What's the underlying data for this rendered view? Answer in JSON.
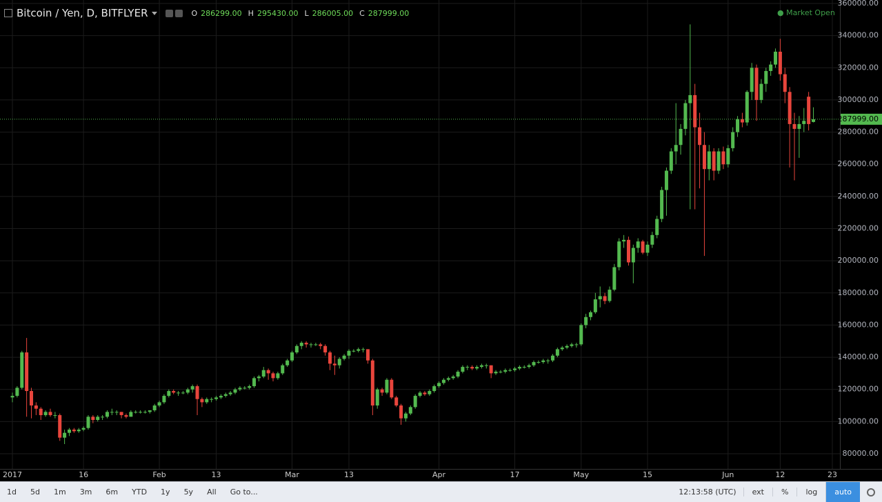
{
  "header": {
    "symbol": "Bitcoin / Yen, D, BITFLYER",
    "ohlc": [
      {
        "key": "O",
        "value": "286299.00"
      },
      {
        "key": "H",
        "value": "295430.00"
      },
      {
        "key": "L",
        "value": "286005.00"
      },
      {
        "key": "C",
        "value": "287999.00"
      }
    ],
    "status": "Market Open"
  },
  "toolbar": {
    "ranges": [
      "1d",
      "5d",
      "1m",
      "3m",
      "6m",
      "YTD",
      "1y",
      "5y",
      "All",
      "Go to..."
    ],
    "time": "12:13:58 (UTC)",
    "options": [
      "ext",
      "%",
      "log",
      "auto"
    ]
  },
  "chart_data": {
    "type": "candlestick",
    "up_color": "#53b94f",
    "down_color": "#e8453c",
    "grid": true,
    "grid_color": "#1c1c1c",
    "x": [
      "2017-01-01",
      "2017-01-02",
      "2017-01-03",
      "2017-01-04",
      "2017-01-05",
      "2017-01-06",
      "2017-01-07",
      "2017-01-08",
      "2017-01-09",
      "2017-01-10",
      "2017-01-11",
      "2017-01-12",
      "2017-01-13",
      "2017-01-14",
      "2017-01-15",
      "2017-01-16",
      "2017-01-17",
      "2017-01-18",
      "2017-01-19",
      "2017-01-20",
      "2017-01-21",
      "2017-01-22",
      "2017-01-23",
      "2017-01-24",
      "2017-01-25",
      "2017-01-26",
      "2017-01-27",
      "2017-01-28",
      "2017-01-29",
      "2017-01-30",
      "2017-01-31",
      "2017-02-01",
      "2017-02-02",
      "2017-02-03",
      "2017-02-04",
      "2017-02-05",
      "2017-02-06",
      "2017-02-07",
      "2017-02-08",
      "2017-02-09",
      "2017-02-10",
      "2017-02-11",
      "2017-02-12",
      "2017-02-13",
      "2017-02-14",
      "2017-02-15",
      "2017-02-16",
      "2017-02-17",
      "2017-02-18",
      "2017-02-19",
      "2017-02-20",
      "2017-02-21",
      "2017-02-22",
      "2017-02-23",
      "2017-02-24",
      "2017-02-25",
      "2017-02-26",
      "2017-02-27",
      "2017-02-28",
      "2017-03-01",
      "2017-03-02",
      "2017-03-03",
      "2017-03-04",
      "2017-03-05",
      "2017-03-06",
      "2017-03-07",
      "2017-03-08",
      "2017-03-09",
      "2017-03-10",
      "2017-03-11",
      "2017-03-12",
      "2017-03-13",
      "2017-03-14",
      "2017-03-15",
      "2017-03-16",
      "2017-03-17",
      "2017-03-18",
      "2017-03-19",
      "2017-03-20",
      "2017-03-21",
      "2017-03-22",
      "2017-03-23",
      "2017-03-24",
      "2017-03-25",
      "2017-03-26",
      "2017-03-27",
      "2017-03-28",
      "2017-03-29",
      "2017-03-30",
      "2017-03-31",
      "2017-04-01",
      "2017-04-02",
      "2017-04-03",
      "2017-04-04",
      "2017-04-05",
      "2017-04-06",
      "2017-04-07",
      "2017-04-08",
      "2017-04-09",
      "2017-04-10",
      "2017-04-11",
      "2017-04-12",
      "2017-04-13",
      "2017-04-14",
      "2017-04-15",
      "2017-04-16",
      "2017-04-17",
      "2017-04-18",
      "2017-04-19",
      "2017-04-20",
      "2017-04-21",
      "2017-04-22",
      "2017-04-23",
      "2017-04-24",
      "2017-04-25",
      "2017-04-26",
      "2017-04-27",
      "2017-04-28",
      "2017-04-29",
      "2017-04-30",
      "2017-05-01",
      "2017-05-02",
      "2017-05-03",
      "2017-05-04",
      "2017-05-05",
      "2017-05-06",
      "2017-05-07",
      "2017-05-08",
      "2017-05-09",
      "2017-05-10",
      "2017-05-11",
      "2017-05-12",
      "2017-05-13",
      "2017-05-14",
      "2017-05-15",
      "2017-05-16",
      "2017-05-17",
      "2017-05-18",
      "2017-05-19",
      "2017-05-20",
      "2017-05-21",
      "2017-05-22",
      "2017-05-23",
      "2017-05-24",
      "2017-05-25",
      "2017-05-26",
      "2017-05-27",
      "2017-05-28",
      "2017-05-29",
      "2017-05-30",
      "2017-05-31",
      "2017-06-01",
      "2017-06-02",
      "2017-06-03",
      "2017-06-04",
      "2017-06-05",
      "2017-06-06",
      "2017-06-07",
      "2017-06-08",
      "2017-06-09",
      "2017-06-10",
      "2017-06-11",
      "2017-06-12",
      "2017-06-13",
      "2017-06-14",
      "2017-06-15",
      "2017-06-16",
      "2017-06-17",
      "2017-06-18",
      "2017-06-19"
    ],
    "open": [
      115000,
      116000,
      121000,
      143000,
      119000,
      110000,
      108000,
      104000,
      106000,
      104000,
      104000,
      90000,
      93000,
      95000,
      94000,
      95000,
      96000,
      103000,
      101000,
      103000,
      103000,
      106000,
      106000,
      106000,
      104000,
      103000,
      106000,
      106000,
      106000,
      106000,
      107000,
      110000,
      112000,
      116000,
      119000,
      118000,
      118000,
      118000,
      120000,
      122000,
      114000,
      112000,
      114000,
      114000,
      115000,
      116000,
      117000,
      118000,
      120000,
      121000,
      121000,
      122000,
      127000,
      128000,
      132000,
      130000,
      127000,
      130000,
      135000,
      138000,
      143000,
      147000,
      149000,
      148000,
      148000,
      148000,
      147000,
      143000,
      136000,
      135000,
      139000,
      141000,
      144000,
      144000,
      145000,
      145000,
      138000,
      110000,
      120000,
      118000,
      126000,
      115000,
      110000,
      102000,
      105000,
      109000,
      116000,
      118000,
      117000,
      119000,
      122000,
      124000,
      126000,
      127000,
      128000,
      131000,
      134000,
      134000,
      133000,
      134000,
      135000,
      135000,
      130000,
      131000,
      131000,
      132000,
      132000,
      133000,
      134000,
      134000,
      135000,
      137000,
      137000,
      138000,
      138000,
      141000,
      145000,
      146000,
      147000,
      148000,
      148000,
      160000,
      165000,
      168000,
      176000,
      178000,
      175000,
      182000,
      196000,
      212000,
      213000,
      199000,
      208000,
      212000,
      205000,
      210000,
      216000,
      226000,
      244000,
      256000,
      268000,
      272000,
      282000,
      298000,
      303000,
      283000,
      272000,
      257000,
      268000,
      256000,
      268000,
      260000,
      270000,
      280000,
      288000,
      286000,
      305000,
      320000,
      300000,
      310000,
      318000,
      322000,
      330000,
      316000,
      305000,
      285000,
      282000,
      285000,
      302000,
      286299
    ],
    "high": [
      118000,
      122000,
      144000,
      152000,
      121000,
      112000,
      109000,
      107000,
      108000,
      106000,
      105000,
      95000,
      96000,
      96000,
      96000,
      97000,
      104000,
      104000,
      104000,
      104000,
      107000,
      108000,
      107000,
      106000,
      105000,
      107000,
      107000,
      107000,
      107000,
      107000,
      111000,
      113000,
      117000,
      120000,
      120000,
      119000,
      119000,
      121000,
      123000,
      123000,
      115000,
      115000,
      115000,
      116000,
      117000,
      118000,
      119000,
      121000,
      122000,
      122000,
      123000,
      128000,
      129000,
      134000,
      133000,
      131000,
      131000,
      136000,
      139000,
      144000,
      148000,
      150000,
      150000,
      149000,
      149000,
      149000,
      148000,
      144000,
      141000,
      140000,
      142000,
      145000,
      145000,
      146000,
      146000,
      145000,
      139000,
      121000,
      121000,
      127000,
      127000,
      116000,
      111000,
      106000,
      110000,
      117000,
      119000,
      119000,
      120000,
      123000,
      125000,
      127000,
      128000,
      129000,
      132000,
      135000,
      135000,
      135000,
      135000,
      136000,
      136000,
      135000,
      132000,
      132000,
      133000,
      133000,
      134000,
      135000,
      135000,
      136000,
      138000,
      138000,
      139000,
      139000,
      142000,
      146000,
      147000,
      148000,
      149000,
      149000,
      161000,
      167000,
      169000,
      180000,
      184000,
      180000,
      184000,
      198000,
      214000,
      216000,
      215000,
      210000,
      214000,
      213000,
      212000,
      218000,
      228000,
      246000,
      258000,
      270000,
      298000,
      285000,
      300000,
      347000,
      310000,
      292000,
      280000,
      272000,
      270000,
      270000,
      271000,
      272000,
      283000,
      290000,
      292000,
      306000,
      323000,
      322000,
      313000,
      320000,
      324000,
      332000,
      338000,
      320000,
      308000,
      292000,
      290000,
      295000,
      305000,
      295430
    ],
    "low": [
      112000,
      115000,
      120000,
      103000,
      102000,
      104000,
      101000,
      103000,
      103000,
      102000,
      88000,
      86000,
      91000,
      93000,
      93000,
      94000,
      95000,
      99000,
      100000,
      101000,
      102000,
      104000,
      104000,
      102000,
      102000,
      103000,
      105000,
      105000,
      105000,
      105000,
      106000,
      109000,
      111000,
      115000,
      117000,
      116000,
      117000,
      117000,
      118000,
      104000,
      109000,
      111000,
      112000,
      113000,
      114000,
      115000,
      116000,
      117000,
      119000,
      120000,
      120000,
      121000,
      125000,
      127000,
      126000,
      125000,
      126000,
      129000,
      134000,
      137000,
      142000,
      145000,
      146000,
      146000,
      147000,
      145000,
      141000,
      132000,
      129000,
      133000,
      138000,
      139000,
      143000,
      143000,
      143000,
      136000,
      104000,
      108000,
      116000,
      117000,
      114000,
      109000,
      98000,
      100000,
      104000,
      108000,
      115000,
      116000,
      116000,
      118000,
      121000,
      123000,
      125000,
      126000,
      127000,
      130000,
      132000,
      132000,
      132000,
      133000,
      133000,
      127000,
      129000,
      130000,
      130000,
      131000,
      131000,
      132000,
      133000,
      133000,
      134000,
      136000,
      136000,
      136000,
      137000,
      140000,
      144000,
      145000,
      146000,
      146000,
      147000,
      158000,
      163000,
      167000,
      171000,
      173000,
      174000,
      181000,
      194000,
      208000,
      197000,
      186000,
      205000,
      204000,
      203000,
      208000,
      214000,
      224000,
      228000,
      254000,
      260000,
      266000,
      278000,
      232000,
      232000,
      245000,
      203000,
      250000,
      250000,
      254000,
      257000,
      258000,
      268000,
      277000,
      283000,
      284000,
      300000,
      287000,
      298000,
      305000,
      315000,
      320000,
      312000,
      298000,
      258000,
      250000,
      264000,
      280000,
      281000,
      286005
    ],
    "close": [
      116000,
      121000,
      143000,
      119000,
      110000,
      108000,
      104000,
      106000,
      104000,
      104000,
      90000,
      93000,
      95000,
      94000,
      95000,
      96000,
      103000,
      101000,
      103000,
      103000,
      106000,
      106000,
      106000,
      104000,
      103000,
      106000,
      106000,
      106000,
      106000,
      107000,
      110000,
      112000,
      116000,
      119000,
      118000,
      118000,
      118000,
      120000,
      122000,
      114000,
      112000,
      114000,
      114000,
      115000,
      116000,
      117000,
      118000,
      120000,
      121000,
      121000,
      122000,
      127000,
      128000,
      132000,
      130000,
      127000,
      130000,
      135000,
      138000,
      143000,
      147000,
      149000,
      148000,
      148000,
      148000,
      147000,
      143000,
      136000,
      135000,
      139000,
      141000,
      144000,
      144000,
      145000,
      145000,
      138000,
      110000,
      120000,
      118000,
      126000,
      115000,
      110000,
      102000,
      105000,
      109000,
      116000,
      118000,
      117000,
      119000,
      122000,
      124000,
      126000,
      127000,
      128000,
      131000,
      134000,
      134000,
      133000,
      134000,
      135000,
      135000,
      130000,
      131000,
      131000,
      132000,
      132000,
      133000,
      134000,
      134000,
      135000,
      137000,
      137000,
      138000,
      138000,
      141000,
      145000,
      146000,
      147000,
      148000,
      148000,
      160000,
      165000,
      168000,
      176000,
      178000,
      175000,
      182000,
      196000,
      212000,
      213000,
      199000,
      208000,
      212000,
      205000,
      210000,
      216000,
      226000,
      244000,
      256000,
      268000,
      272000,
      282000,
      298000,
      303000,
      283000,
      272000,
      257000,
      268000,
      256000,
      268000,
      260000,
      270000,
      280000,
      288000,
      286000,
      305000,
      320000,
      300000,
      310000,
      318000,
      322000,
      330000,
      316000,
      305000,
      285000,
      282000,
      285000,
      287000,
      285000,
      287999
    ],
    "xlim": [
      "2017-01-01",
      "2017-06-23"
    ],
    "xticks": [
      {
        "value": "2017-01-01",
        "label": "2017"
      },
      {
        "value": "2017-01-16",
        "label": "16"
      },
      {
        "value": "2017-02-01",
        "label": "Feb"
      },
      {
        "value": "2017-02-13",
        "label": "13"
      },
      {
        "value": "2017-03-01",
        "label": "Mar"
      },
      {
        "value": "2017-03-13",
        "label": "13"
      },
      {
        "value": "2017-04-01",
        "label": "Apr"
      },
      {
        "value": "2017-04-17",
        "label": "17"
      },
      {
        "value": "2017-05-01",
        "label": "May"
      },
      {
        "value": "2017-05-15",
        "label": "15"
      },
      {
        "value": "2017-06-01",
        "label": "Jun"
      },
      {
        "value": "2017-06-12",
        "label": "12"
      },
      {
        "value": "2017-06-23",
        "label": "23"
      }
    ],
    "ylim": [
      80000,
      360000
    ],
    "yticks": [
      {
        "value": 80000,
        "label": "80000.00"
      },
      {
        "value": 100000,
        "label": "100000.00"
      },
      {
        "value": 120000,
        "label": "120000.00"
      },
      {
        "value": 140000,
        "label": "140000.00"
      },
      {
        "value": 160000,
        "label": "160000.00"
      },
      {
        "value": 180000,
        "label": "180000.00"
      },
      {
        "value": 200000,
        "label": "200000.00"
      },
      {
        "value": 220000,
        "label": "220000.00"
      },
      {
        "value": 240000,
        "label": "240000.00"
      },
      {
        "value": 260000,
        "label": "260000.00"
      },
      {
        "value": 280000,
        "label": "280000.00"
      },
      {
        "value": 300000,
        "label": "300000.00"
      },
      {
        "value": 320000,
        "label": "320000.00"
      },
      {
        "value": 340000,
        "label": "340000.00"
      },
      {
        "value": 360000,
        "label": "360000.00"
      }
    ],
    "price_line": {
      "value": 287999,
      "label": "287999.00",
      "color": "#53b94f"
    }
  }
}
